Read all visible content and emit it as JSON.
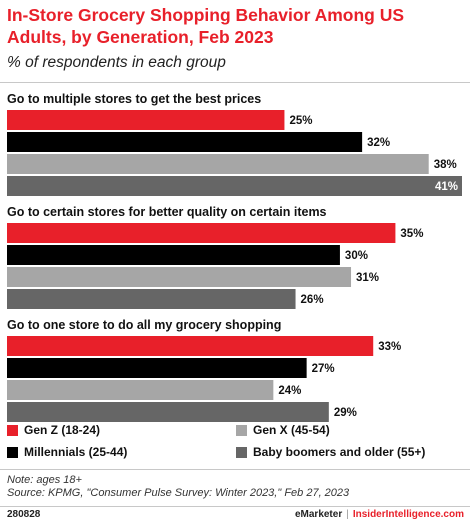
{
  "header": {
    "title": "In-Store Grocery Shopping Behavior Among US Adults, by Generation, Feb 2023",
    "subtitle": "% of respondents in each group"
  },
  "chart_data": {
    "type": "bar",
    "orientation": "horizontal",
    "categories": [
      "Go to multiple stores to get the best prices",
      "Go to certain stores for better quality on certain items",
      "Go to one store to do all my grocery shopping"
    ],
    "series": [
      {
        "name": "Gen Z (18-24)",
        "color": "#e8202a",
        "values": [
          25,
          35,
          33
        ]
      },
      {
        "name": "Millennials (25-44)",
        "color": "#000000",
        "values": [
          32,
          30,
          27
        ]
      },
      {
        "name": "Gen X (45-54)",
        "color": "#a6a6a6",
        "values": [
          38,
          31,
          24
        ]
      },
      {
        "name": "Baby boomers and older (55+)",
        "color": "#666666",
        "values": [
          41,
          26,
          29
        ]
      }
    ],
    "value_suffix": "%",
    "xlim": [
      0,
      41
    ],
    "grid": false,
    "legend_position": "bottom"
  },
  "notes": {
    "note": "Note: ages 18+",
    "source": "Source: KPMG, \"Consumer Pulse Survey: Winter 2023,\" Feb 27, 2023"
  },
  "footer": {
    "chart_id": "280828",
    "brand": "eMarketer",
    "separator": "|",
    "brand2": "InsiderIntelligence.com"
  }
}
